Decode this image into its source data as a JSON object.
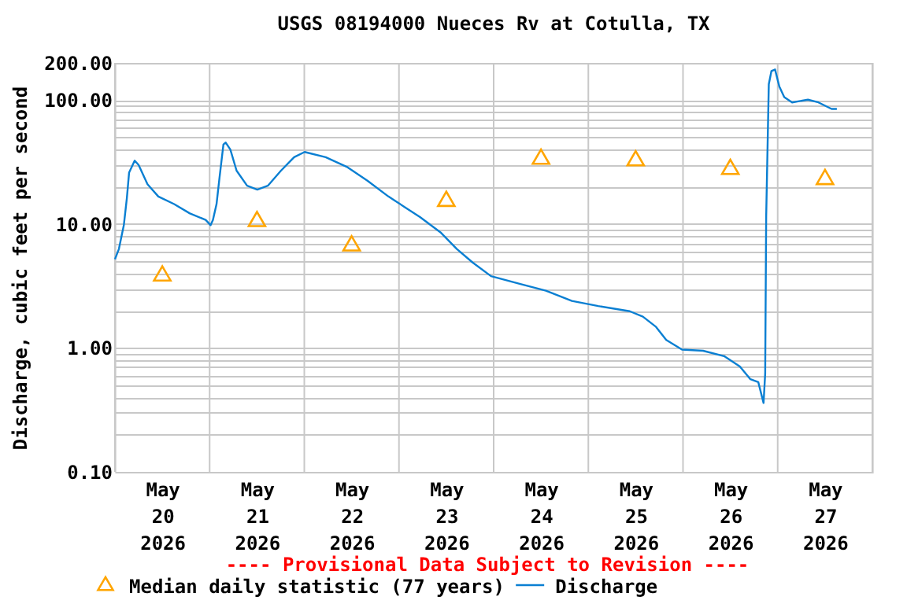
{
  "chart_data": {
    "type": "line",
    "title": "USGS 08194000 Nueces Rv at Cotulla, TX",
    "ylabel": "Discharge, cubic feet per second",
    "annotations": [
      "---- Provisional Data Subject to Revision ----"
    ],
    "log": "y",
    "grid": true,
    "legend": "bottom",
    "xlim": [
      "2026-05-20T00:00",
      "2026-05-28T00:00"
    ],
    "xticks": [
      {
        "value": "2026-05-20T00:00",
        "label": null
      },
      {
        "value": "2026-05-20T12:00",
        "label": "May 20 2026"
      },
      {
        "value": "2026-05-21T00:00",
        "label": null
      },
      {
        "value": "2026-05-21T12:00",
        "label": "May 21 2026"
      },
      {
        "value": "2026-05-22T00:00",
        "label": null
      },
      {
        "value": "2026-05-22T12:00",
        "label": "May 22 2026"
      },
      {
        "value": "2026-05-23T00:00",
        "label": null
      },
      {
        "value": "2026-05-23T12:00",
        "label": "May 23 2026"
      },
      {
        "value": "2026-05-24T00:00",
        "label": null
      },
      {
        "value": "2026-05-24T12:00",
        "label": "May 24 2026"
      },
      {
        "value": "2026-05-25T00:00",
        "label": null
      },
      {
        "value": "2026-05-25T12:00",
        "label": "May 25 2026"
      },
      {
        "value": "2026-05-26T00:00",
        "label": null
      },
      {
        "value": "2026-05-26T12:00",
        "label": "May 26 2026"
      },
      {
        "value": "2026-05-27T00:00",
        "label": null
      },
      {
        "value": "2026-05-27T12:00",
        "label": "May 27 2026"
      },
      {
        "value": "2026-05-28T00:00",
        "label": null
      }
    ],
    "ylim": [
      0.1,
      200
    ],
    "yticks": [
      {
        "value": 0.1,
        "label": "0.10"
      },
      {
        "value": 0.2,
        "label": null
      },
      {
        "value": 0.3,
        "label": null
      },
      {
        "value": 0.4,
        "label": null
      },
      {
        "value": 0.5,
        "label": null
      },
      {
        "value": 0.6,
        "label": null
      },
      {
        "value": 0.7,
        "label": null
      },
      {
        "value": 0.8,
        "label": null
      },
      {
        "value": 0.9,
        "label": null
      },
      {
        "value": 1,
        "label": "1.00"
      },
      {
        "value": 2,
        "label": null
      },
      {
        "value": 3,
        "label": null
      },
      {
        "value": 4,
        "label": null
      },
      {
        "value": 5,
        "label": null
      },
      {
        "value": 6,
        "label": null
      },
      {
        "value": 7,
        "label": null
      },
      {
        "value": 8,
        "label": null
      },
      {
        "value": 9,
        "label": null
      },
      {
        "value": 10,
        "label": "10.00"
      },
      {
        "value": 20,
        "label": null
      },
      {
        "value": 30,
        "label": null
      },
      {
        "value": 40,
        "label": null
      },
      {
        "value": 50,
        "label": null
      },
      {
        "value": 60,
        "label": null
      },
      {
        "value": 70,
        "label": null
      },
      {
        "value": 80,
        "label": null
      },
      {
        "value": 90,
        "label": null
      },
      {
        "value": 100,
        "label": "100.00"
      },
      {
        "value": 200,
        "label": "200.00"
      }
    ],
    "series": [
      {
        "name": "Median daily statistic (77 years)",
        "type": "scatter",
        "marker": "triangle",
        "color": "#ffa500",
        "x": [
          "2026-05-20T12:00",
          "2026-05-21T12:00",
          "2026-05-22T12:00",
          "2026-05-23T12:00",
          "2026-05-24T12:00",
          "2026-05-25T12:00",
          "2026-05-26T12:00",
          "2026-05-27T12:00"
        ],
        "values": [
          4.0,
          11,
          7.0,
          16,
          35,
          34,
          29,
          24
        ]
      },
      {
        "name": "Discharge",
        "type": "line",
        "color": "#0a7fd2",
        "x": [
          "2026-05-20T00:00",
          "2026-05-20T01:00",
          "2026-05-20T02:15",
          "2026-05-20T03:00",
          "2026-05-20T03:35",
          "2026-05-20T05:00",
          "2026-05-20T06:00",
          "2026-05-20T08:15",
          "2026-05-20T11:00",
          "2026-05-20T15:00",
          "2026-05-20T19:00",
          "2026-05-20T23:00",
          "2026-05-21T00:15",
          "2026-05-21T00:50",
          "2026-05-21T01:45",
          "2026-05-21T02:30",
          "2026-05-21T03:30",
          "2026-05-21T04:05",
          "2026-05-21T05:15",
          "2026-05-21T06:50",
          "2026-05-21T09:30",
          "2026-05-21T12:05",
          "2026-05-21T14:45",
          "2026-05-21T18:05",
          "2026-05-21T21:25",
          "2026-05-22T00:05",
          "2026-05-22T05:25",
          "2026-05-22T10:45",
          "2026-05-22T16:00",
          "2026-05-22T21:20",
          "2026-05-23T01:20",
          "2026-05-23T05:20",
          "2026-05-23T10:40",
          "2026-05-23T14:40",
          "2026-05-23T18:40",
          "2026-05-23T23:20",
          "2026-05-24T06:35",
          "2026-05-24T13:15",
          "2026-05-24T19:50",
          "2026-05-25T02:30",
          "2026-05-25T10:30",
          "2026-05-25T13:50",
          "2026-05-25T17:10",
          "2026-05-25T19:45",
          "2026-05-25T23:45",
          "2026-05-26T05:05",
          "2026-05-26T10:25",
          "2026-05-26T14:25",
          "2026-05-26T17:05",
          "2026-05-26T19:05",
          "2026-05-26T20:25",
          "2026-05-26T20:50",
          "2026-05-26T21:05",
          "2026-05-26T21:45",
          "2026-05-26T22:25",
          "2026-05-26T23:20",
          "2026-05-27T00:25",
          "2026-05-27T01:40",
          "2026-05-27T03:40",
          "2026-05-27T07:40",
          "2026-05-27T10:20",
          "2026-05-27T13:40",
          "2026-05-27T15:00"
        ],
        "values": [
          5.2,
          6.3,
          9.8,
          16,
          26,
          32.5,
          30,
          21,
          16.7,
          14.5,
          12.2,
          10.8,
          9.8,
          10.8,
          14.5,
          23.6,
          44,
          45.5,
          40,
          27,
          20.4,
          19,
          20.4,
          27,
          34.7,
          38.2,
          34.7,
          29,
          22.4,
          16.7,
          13.8,
          11.4,
          8.5,
          6.3,
          4.9,
          3.8,
          3.3,
          2.9,
          2.4,
          2.18,
          1.98,
          1.79,
          1.48,
          1.16,
          0.97,
          0.95,
          0.86,
          0.71,
          0.56,
          0.53,
          0.36,
          0.62,
          11.4,
          135,
          172,
          177,
          129,
          106,
          96,
          101,
          96,
          85,
          85
        ]
      }
    ]
  }
}
